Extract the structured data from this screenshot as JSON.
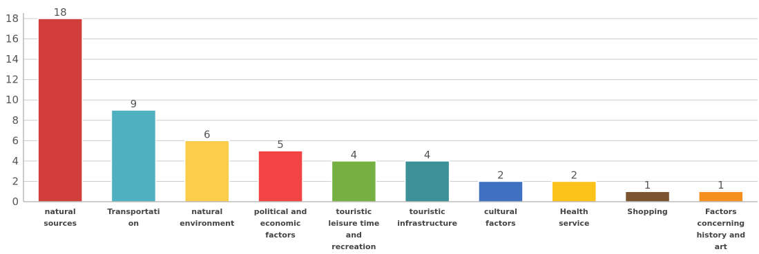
{
  "chart_data": {
    "type": "bar",
    "title": "",
    "xlabel": "",
    "ylabel": "",
    "ylim": [
      0,
      18
    ],
    "yticks": [
      0,
      2,
      4,
      6,
      8,
      10,
      12,
      14,
      16,
      18
    ],
    "grid": true,
    "legend": "none",
    "categories": [
      "natural sources",
      "Transportation",
      "natural environment",
      "political and economic factors",
      "touristic leisure time and recreation",
      "touristic infrastructure",
      "cultural factors",
      "Health service",
      "Shopping",
      "Factors concerning history and art"
    ],
    "category_label_lines": [
      [
        "natural",
        "sources"
      ],
      [
        "Transportati",
        "on"
      ],
      [
        "natural",
        "environment"
      ],
      [
        "political and",
        "economic",
        "factors"
      ],
      [
        "touristic",
        "leisure time",
        "and",
        "recreation"
      ],
      [
        "touristic",
        "infrastructure"
      ],
      [
        "cultural",
        "factors"
      ],
      [
        "Health",
        "service"
      ],
      [
        "Shopping"
      ],
      [
        "Factors",
        "concerning",
        "history and",
        "art"
      ]
    ],
    "values": [
      18,
      9,
      6,
      5,
      4,
      4,
      2,
      2,
      1,
      1
    ],
    "colors": [
      "#d13d3a",
      "#4fb0c0",
      "#fbcd4a",
      "#f24443",
      "#76b043",
      "#3c9199",
      "#4070c0",
      "#fbc21a",
      "#7a5530",
      "#f5901e"
    ]
  }
}
